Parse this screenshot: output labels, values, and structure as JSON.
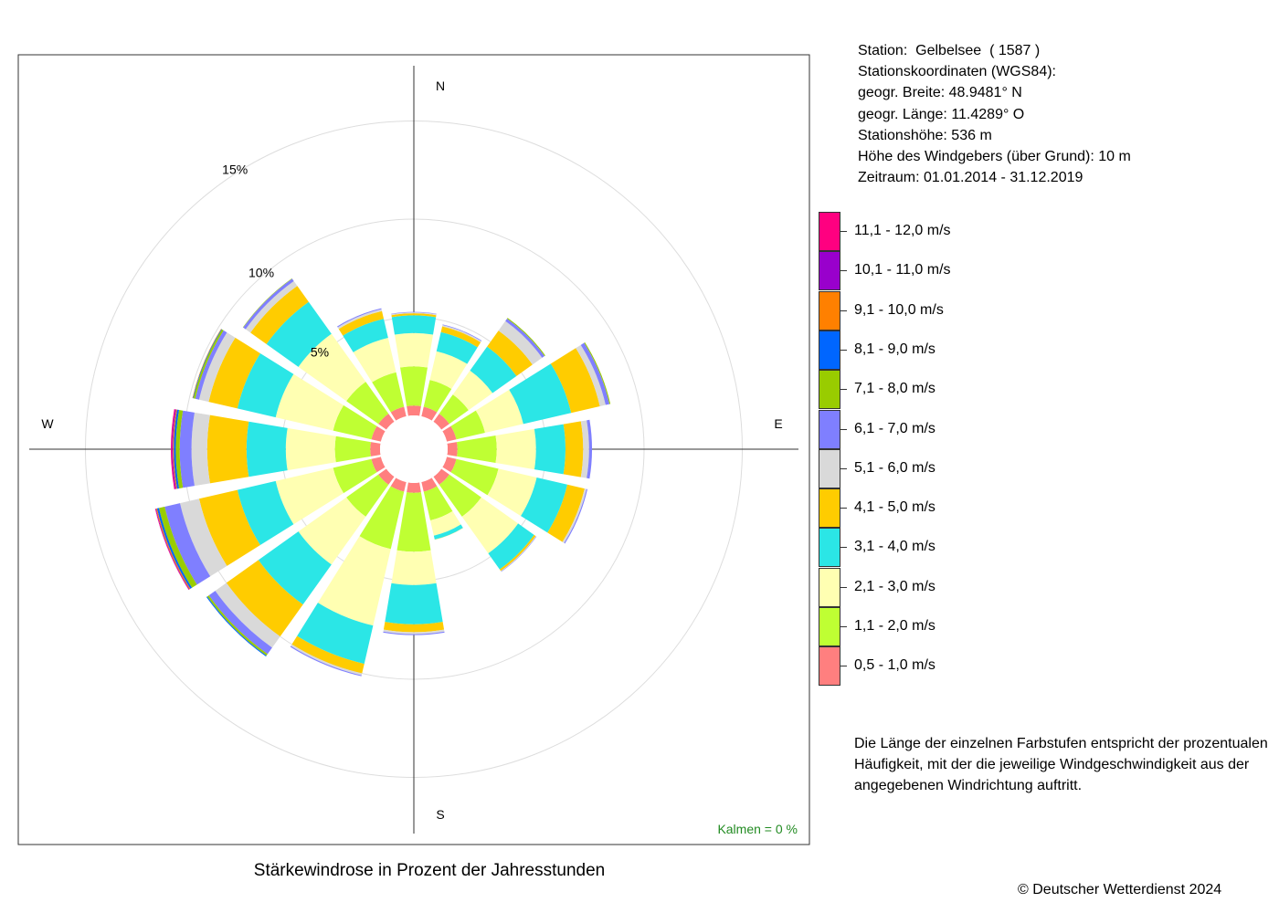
{
  "chart_data": {
    "type": "wind-rose",
    "title": "Stärkewindrose in Prozent der Jahresstunden",
    "directions": [
      "N",
      "NNO",
      "NO",
      "ONO",
      "O",
      "OSO",
      "SO",
      "SSO",
      "S",
      "SSW",
      "SW",
      "WSW",
      "W",
      "WNW",
      "NW",
      "NNW"
    ],
    "direction_labels": {
      "N": "N",
      "E": "E",
      "S": "S",
      "W": "W"
    },
    "angles_deg": [
      0,
      22.5,
      45,
      67.5,
      90,
      112.5,
      135,
      157.5,
      180,
      202.5,
      225,
      247.5,
      270,
      292.5,
      315,
      337.5
    ],
    "categories": [
      "0,5 - 1,0 m/s",
      "1,1 - 2,0 m/s",
      "2,1 - 3,0 m/s",
      "3,1 - 4,0 m/s",
      "4,1 - 5,0 m/s",
      "5,1 - 6,0 m/s",
      "6,1 - 7,0 m/s",
      "7,1 - 8,0 m/s",
      "8,1 - 9,0 m/s",
      "9,1 - 10,0 m/s",
      "10,1 - 11,0 m/s",
      "11,1 - 12,0 m/s"
    ],
    "colors": [
      "#FF7F7F",
      "#BFFF33",
      "#FFFFB2",
      "#2BE6E6",
      "#FFCC00",
      "#D9D9D9",
      "#7F7FFF",
      "#99CC00",
      "#0066FF",
      "#FF8000",
      "#9900CC",
      "#FF0080"
    ],
    "series": [
      [
        0.5,
        2.0,
        1.7,
        0.9,
        0.1,
        0.05,
        0.02,
        0,
        0,
        0,
        0,
        0
      ],
      [
        0.5,
        1.4,
        1.5,
        1.0,
        0.3,
        0.07,
        0.03,
        0,
        0,
        0,
        0,
        0
      ],
      [
        0.5,
        1.2,
        1.5,
        1.5,
        1.0,
        0.6,
        0.15,
        0.05,
        0,
        0,
        0,
        0
      ],
      [
        0.5,
        1.5,
        2.0,
        2.5,
        1.5,
        0.3,
        0.2,
        0.05,
        0,
        0,
        0,
        0
      ],
      [
        0.5,
        2.0,
        2.0,
        1.5,
        0.9,
        0.3,
        0.15,
        0,
        0,
        0,
        0,
        0
      ],
      [
        0.5,
        2.2,
        2.0,
        1.6,
        0.9,
        0.1,
        0.05,
        0,
        0,
        0,
        0,
        0
      ],
      [
        0.5,
        2.0,
        2.3,
        1.0,
        0.1,
        0.03,
        0.02,
        0,
        0,
        0,
        0,
        0
      ],
      [
        0.5,
        1.5,
        0.8,
        0.2,
        0.01,
        0,
        0,
        0,
        0,
        0,
        0,
        0
      ],
      [
        0.5,
        3.0,
        1.7,
        2.0,
        0.4,
        0.1,
        0.05,
        0,
        0,
        0,
        0,
        0
      ],
      [
        0.5,
        3.0,
        4.0,
        2.0,
        0.5,
        0.1,
        0.05,
        0,
        0,
        0,
        0,
        0
      ],
      [
        0.5,
        2.0,
        3.0,
        2.5,
        2.0,
        0.7,
        0.4,
        0.1,
        0.05,
        0,
        0,
        0
      ],
      [
        0.5,
        2.0,
        3.0,
        2.0,
        2.0,
        1.0,
        0.8,
        0.3,
        0.1,
        0.05,
        0.03,
        0.02
      ],
      [
        0.5,
        1.8,
        2.5,
        2.0,
        2.0,
        0.8,
        0.6,
        0.2,
        0.1,
        0.05,
        0.05,
        0.05
      ],
      [
        0.5,
        2.0,
        3.0,
        2.0,
        1.5,
        0.5,
        0.2,
        0.1,
        0.03,
        0.02,
        0,
        0
      ],
      [
        0.5,
        2.0,
        3.0,
        2.0,
        1.0,
        0.3,
        0.15,
        0.02,
        0,
        0,
        0,
        0
      ],
      [
        0.5,
        1.8,
        1.8,
        1.0,
        0.4,
        0.1,
        0.05,
        0,
        0,
        0,
        0,
        0
      ]
    ],
    "rings_pct": [
      5,
      10,
      15
    ],
    "ring_labels": [
      "5%",
      "10%",
      "15%"
    ],
    "calm_label": "Kalmen  =  0 %"
  },
  "station": {
    "lines": [
      "Station:  Gelbelsee  ( 1587 )",
      "Stationskoordinaten (WGS84):",
      "geogr. Breite: 48.9481° N",
      "geogr. Länge: 11.4289° O",
      "Stationshöhe: 536 m",
      "Höhe des Windgebers (über Grund): 10 m",
      "Zeitraum: 01.01.2014 - 31.12.2019"
    ]
  },
  "note": "Die Länge der einzelnen Farbstufen entspricht der prozentualen Häufigkeit, mit der die jeweilige Windgeschwindigkeit aus der angegebenen Windrichtung auftritt.",
  "copyright": "© Deutscher Wetterdienst  2024"
}
